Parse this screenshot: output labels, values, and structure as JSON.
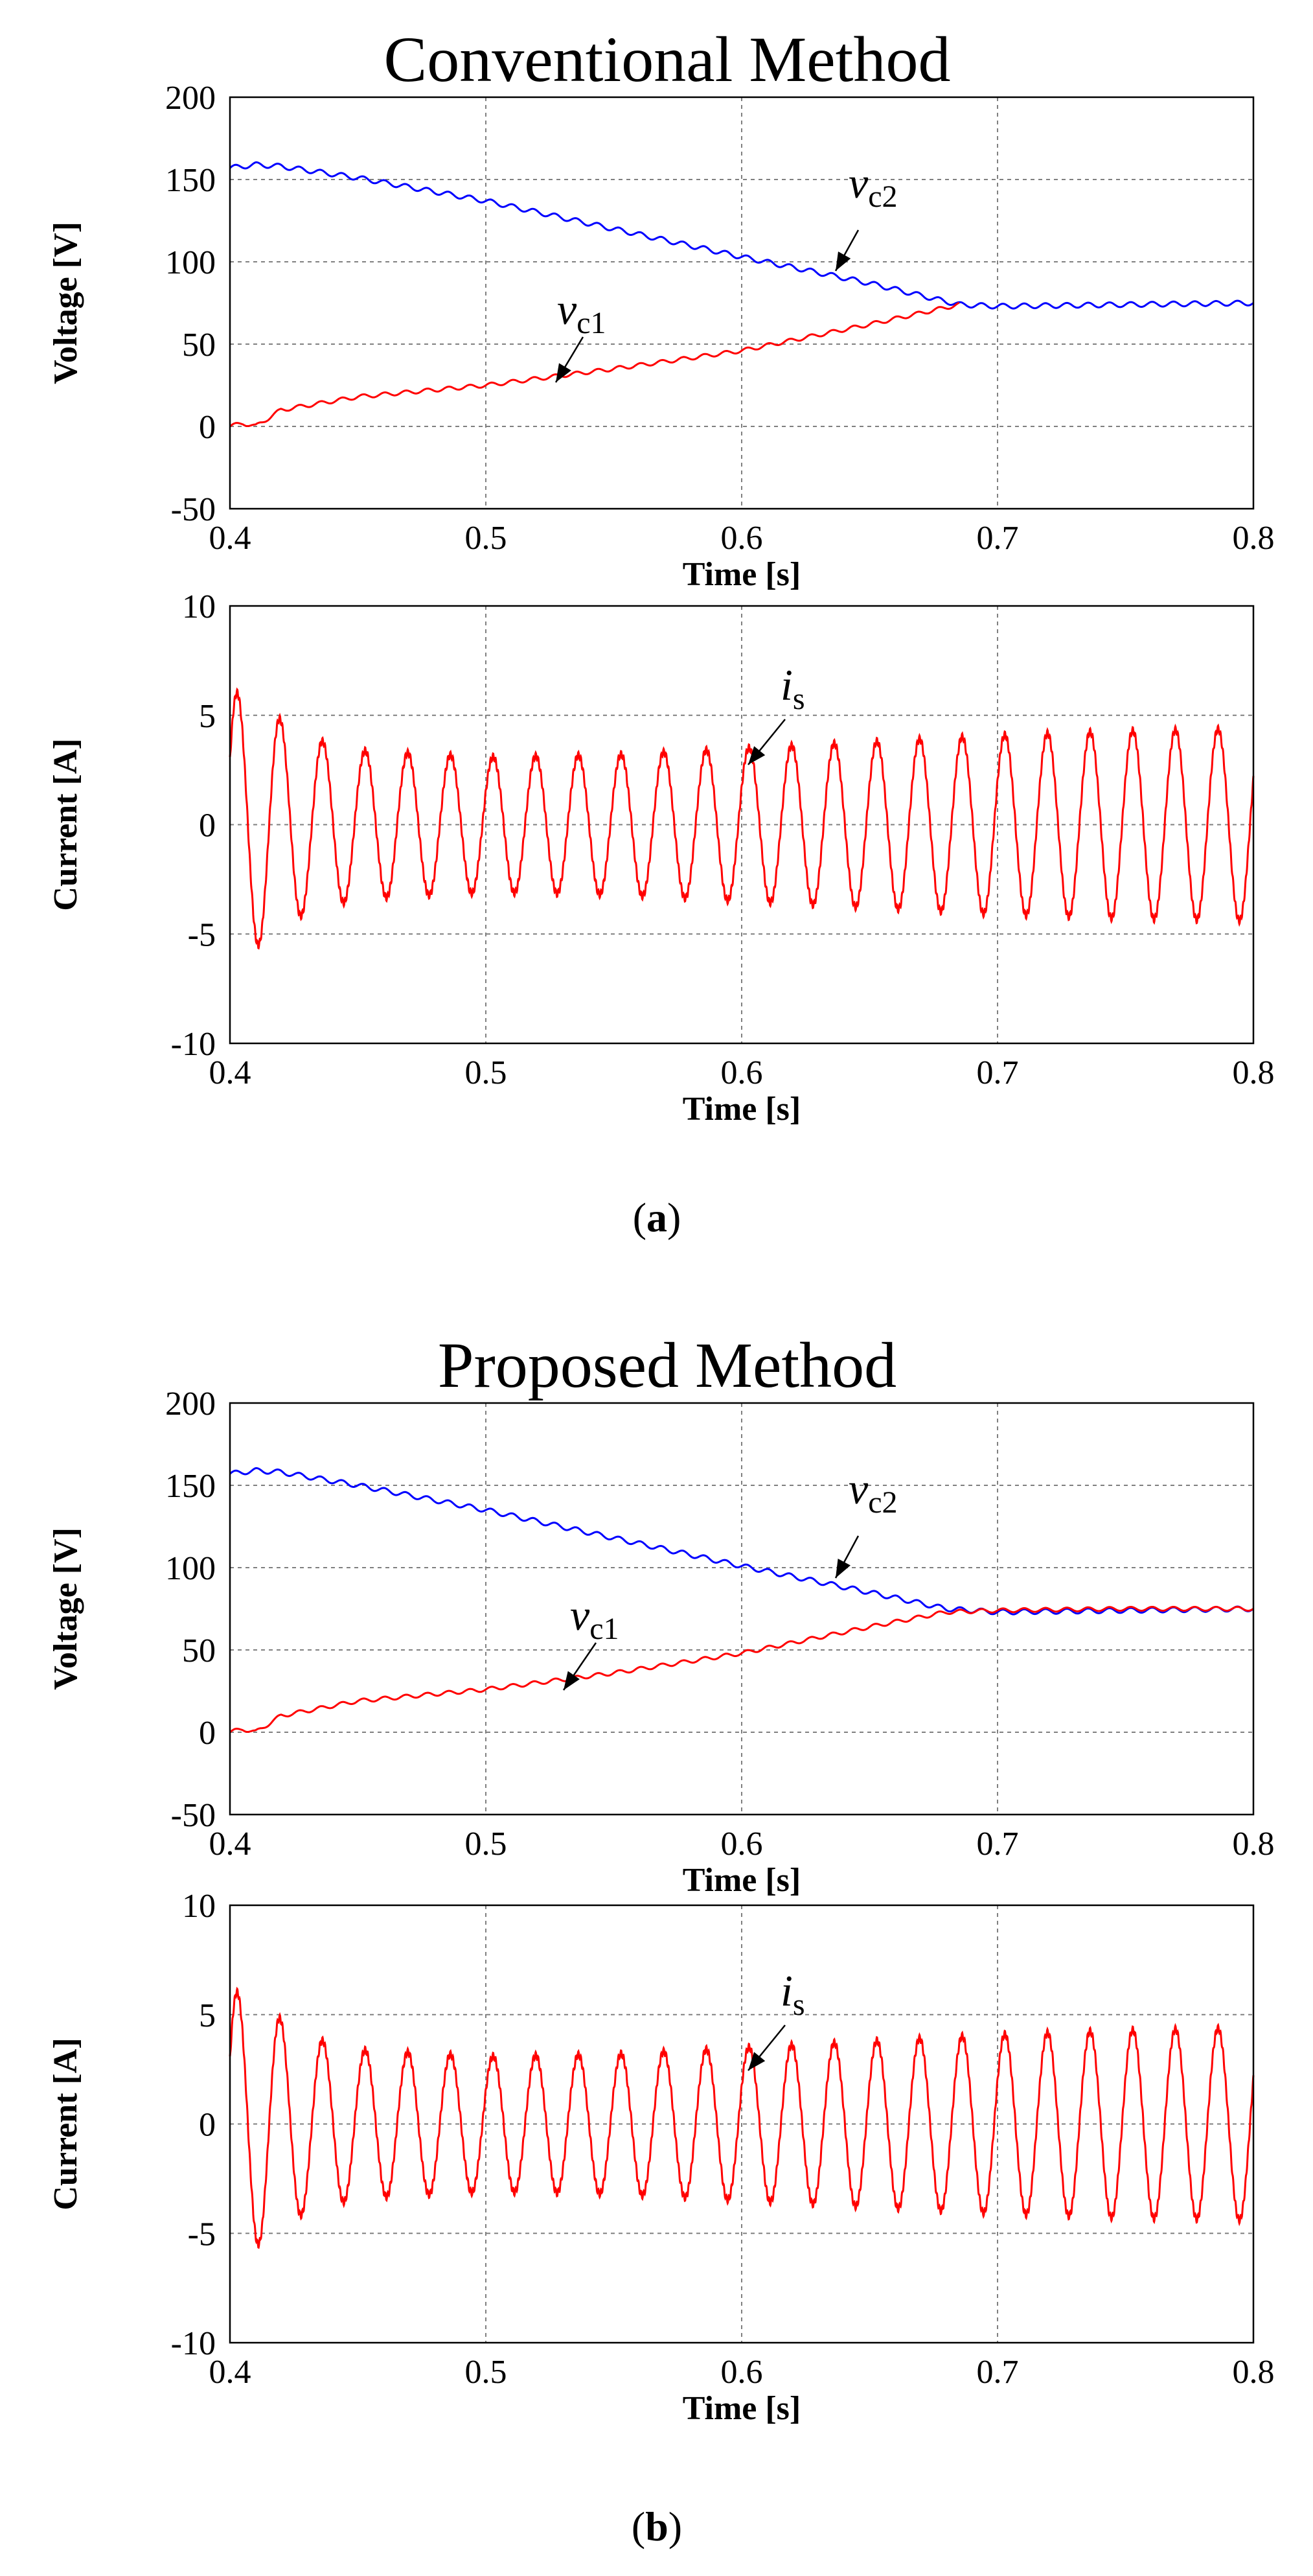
{
  "figure": {
    "panels": [
      {
        "label": "(",
        "bold": "a",
        "close": ")",
        "full": "(a)"
      },
      {
        "label": "(",
        "bold": "b",
        "close": ")",
        "full": "(b)"
      }
    ]
  },
  "chart_data": [
    {
      "id": "a-voltage",
      "type": "line",
      "title": "Conventional Method",
      "xlabel": "Time [s]",
      "ylabel": "Voltage [V]",
      "xlim": [
        0.4,
        0.8
      ],
      "ylim": [
        -50,
        200
      ],
      "xticks": [
        0.4,
        0.5,
        0.6,
        0.7,
        0.8
      ],
      "yticks": [
        -50,
        0,
        50,
        100,
        150,
        200
      ],
      "grid": true,
      "series": [
        {
          "name": "vc2",
          "color": "#0000ff",
          "x": [
            0.4,
            0.41,
            0.42,
            0.45,
            0.5,
            0.55,
            0.6,
            0.65,
            0.685,
            0.7,
            0.75,
            0.8
          ],
          "y": [
            157,
            159,
            158,
            151,
            137,
            120,
            103,
            87,
            74,
            73,
            74,
            75
          ],
          "ripple": 1.5
        },
        {
          "name": "vc1",
          "color": "#ff0000",
          "x": [
            0.4,
            0.405,
            0.41,
            0.42,
            0.45,
            0.5,
            0.55,
            0.6,
            0.65,
            0.685
          ],
          "y": [
            0,
            2,
            0,
            10,
            18,
            25,
            35,
            46,
            62,
            74
          ],
          "ripple": 1.2
        }
      ],
      "annotations": [
        {
          "series": "vc2",
          "main": "v",
          "sub": "c2"
        },
        {
          "series": "vc1",
          "main": "v",
          "sub": "c1"
        }
      ]
    },
    {
      "id": "a-current",
      "type": "line",
      "xlabel": "Time [s]",
      "ylabel": "Current [A]",
      "xlim": [
        0.4,
        0.8
      ],
      "ylim": [
        -10,
        10
      ],
      "xticks": [
        0.4,
        0.5,
        0.6,
        0.7,
        0.8
      ],
      "yticks": [
        -10,
        -5,
        0,
        5,
        10
      ],
      "grid": true,
      "series": [
        {
          "name": "is",
          "color": "#ff0000",
          "frequency_hz": 60,
          "x": [
            0.4,
            0.41,
            0.43,
            0.45,
            0.5,
            0.55,
            0.6,
            0.65,
            0.7,
            0.75,
            0.8
          ],
          "amplitude": [
            6.2,
            5.6,
            4.0,
            3.4,
            3.1,
            3.2,
            3.5,
            3.8,
            4.1,
            4.3,
            4.4
          ]
        }
      ],
      "annotations": [
        {
          "series": "is",
          "main": "i",
          "sub": "s"
        }
      ]
    },
    {
      "id": "b-voltage",
      "type": "line",
      "title": "Proposed Method",
      "xlabel": "Time [s]",
      "ylabel": "Voltage [V]",
      "xlim": [
        0.4,
        0.8
      ],
      "ylim": [
        -50,
        200
      ],
      "xticks": [
        0.4,
        0.5,
        0.6,
        0.7,
        0.8
      ],
      "yticks": [
        -50,
        0,
        50,
        100,
        150,
        200
      ],
      "grid": true,
      "series": [
        {
          "name": "vc2",
          "color": "#0000ff",
          "x": [
            0.4,
            0.41,
            0.42,
            0.45,
            0.5,
            0.55,
            0.6,
            0.65,
            0.68,
            0.7,
            0.75,
            0.8
          ],
          "y": [
            157,
            159,
            158,
            150,
            135,
            118,
            101,
            85,
            75,
            73,
            74,
            75
          ],
          "ripple": 1.5
        },
        {
          "name": "vc1",
          "color": "#ff0000",
          "x": [
            0.4,
            0.405,
            0.41,
            0.42,
            0.45,
            0.5,
            0.55,
            0.6,
            0.65,
            0.68,
            0.7,
            0.75,
            0.8
          ],
          "y": [
            0,
            2,
            0,
            10,
            19,
            26,
            36,
            48,
            64,
            73,
            74,
            75,
            75
          ],
          "ripple": 1.2
        }
      ],
      "annotations": [
        {
          "series": "vc2",
          "main": "v",
          "sub": "c2"
        },
        {
          "series": "vc1",
          "main": "v",
          "sub": "c1"
        }
      ]
    },
    {
      "id": "b-current",
      "type": "line",
      "xlabel": "Time [s]",
      "ylabel": "Current [A]",
      "xlim": [
        0.4,
        0.8
      ],
      "ylim": [
        -10,
        10
      ],
      "xticks": [
        0.4,
        0.5,
        0.6,
        0.7,
        0.8
      ],
      "yticks": [
        -10,
        -5,
        0,
        5,
        10
      ],
      "grid": true,
      "series": [
        {
          "name": "is",
          "color": "#ff0000",
          "frequency_hz": 60,
          "x": [
            0.4,
            0.41,
            0.43,
            0.45,
            0.5,
            0.55,
            0.6,
            0.65,
            0.7,
            0.75,
            0.8
          ],
          "amplitude": [
            6.2,
            5.6,
            4.0,
            3.4,
            3.1,
            3.2,
            3.5,
            3.8,
            4.1,
            4.3,
            4.4
          ]
        }
      ],
      "annotations": [
        {
          "series": "is",
          "main": "i",
          "sub": "s"
        }
      ]
    }
  ]
}
